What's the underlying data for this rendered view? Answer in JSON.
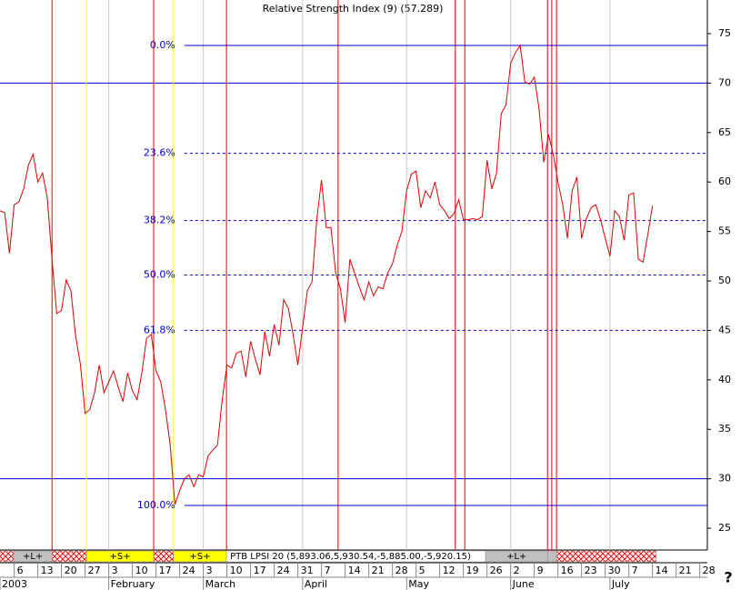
{
  "chart_data": {
    "type": "line",
    "title": "Relative Strength Index (9) (57.289)",
    "color": "#e00000",
    "values": [
      57.1,
      56.9,
      52.8,
      57.7,
      58.0,
      59.3,
      61.7,
      62.8,
      60.0,
      60.9,
      58.4,
      52.2,
      46.7,
      47.0,
      50.1,
      49.0,
      44.4,
      41.6,
      36.6,
      37.0,
      38.7,
      41.5,
      38.7,
      39.8,
      40.9,
      39.3,
      37.8,
      40.7,
      38.9,
      38.0,
      40.7,
      44.2,
      44.6,
      40.9,
      39.8,
      37.0,
      33.4,
      27.4,
      28.8,
      30.0,
      30.4,
      29.2,
      30.4,
      30.2,
      32.3,
      32.9,
      33.4,
      38.0,
      41.5,
      41.2,
      42.7,
      42.9,
      40.3,
      43.9,
      42.1,
      40.5,
      44.9,
      42.4,
      45.6,
      43.5,
      48.1,
      47.2,
      44.6,
      41.5,
      45.3,
      49.0,
      49.9,
      56.2,
      60.2,
      55.4,
      55.4,
      50.8,
      49.2,
      45.8,
      52.2,
      50.8,
      49.4,
      48.1,
      49.9,
      48.5,
      49.4,
      49.2,
      50.8,
      51.7,
      53.6,
      55.0,
      59.1,
      60.8,
      61.1,
      57.4,
      59.1,
      58.4,
      60.0,
      57.7,
      57.1,
      56.3,
      56.8,
      58.2,
      56.2,
      56.2,
      56.3,
      56.2,
      56.5,
      62.2,
      59.3,
      60.9,
      66.9,
      67.8,
      72.0,
      73.1,
      73.8,
      70.1,
      69.9,
      70.6,
      67.4,
      62.0,
      64.8,
      62.8,
      60.0,
      57.7,
      54.3,
      59.1,
      60.5,
      54.3,
      56.3,
      57.4,
      57.7,
      56.2,
      54.3,
      52.5,
      57.1,
      56.5,
      54.1,
      58.7,
      58.9,
      52.2,
      51.9,
      54.7,
      57.6
    ],
    "xlim": [
      0,
      149.6
    ],
    "ylim": [
      22.8,
      78.4
    ],
    "yticks": [
      25,
      30,
      35,
      40,
      45,
      50,
      55,
      60,
      65,
      70,
      75
    ],
    "xticks": [
      {
        "value": 3,
        "label": "6"
      },
      {
        "value": 8,
        "label": "13"
      },
      {
        "value": 13,
        "label": "20"
      },
      {
        "value": 18,
        "label": "27"
      },
      {
        "value": 23,
        "label": "3"
      },
      {
        "value": 28,
        "label": "10"
      },
      {
        "value": 33,
        "label": "17"
      },
      {
        "value": 38,
        "label": "24"
      },
      {
        "value": 43,
        "label": "3"
      },
      {
        "value": 48,
        "label": "10"
      },
      {
        "value": 53,
        "label": "17"
      },
      {
        "value": 58,
        "label": "24"
      },
      {
        "value": 63,
        "label": "31"
      },
      {
        "value": 68,
        "label": "7"
      },
      {
        "value": 73,
        "label": "14"
      },
      {
        "value": 78,
        "label": "21"
      },
      {
        "value": 83,
        "label": "28"
      },
      {
        "value": 88,
        "label": "5"
      },
      {
        "value": 93,
        "label": "12"
      },
      {
        "value": 98,
        "label": "19"
      },
      {
        "value": 103,
        "label": "26"
      },
      {
        "value": 108,
        "label": "2"
      },
      {
        "value": 113,
        "label": "9"
      },
      {
        "value": 118,
        "label": "16"
      },
      {
        "value": 123,
        "label": "23"
      },
      {
        "value": 128,
        "label": "30"
      },
      {
        "value": 133,
        "label": "7"
      },
      {
        "value": 138,
        "label": "14"
      },
      {
        "value": 143,
        "label": "21"
      },
      {
        "value": 148,
        "label": "28"
      }
    ],
    "month_labels": [
      {
        "value": 0,
        "label": "2003"
      },
      {
        "value": 23,
        "label": "February"
      },
      {
        "value": 43,
        "label": "March"
      },
      {
        "value": 64,
        "label": "April"
      },
      {
        "value": 86,
        "label": "May"
      },
      {
        "value": 108,
        "label": "June"
      },
      {
        "value": 129,
        "label": "July"
      }
    ],
    "fib_start": 39,
    "fib_levels": [
      {
        "value": 73.8,
        "label": "0.0%"
      },
      {
        "value": 62.9,
        "label": "23.6%"
      },
      {
        "value": 56.1,
        "label": "38.2%"
      },
      {
        "value": 50.6,
        "label": "50.0%"
      },
      {
        "value": 45.0,
        "label": "61.8%"
      },
      {
        "value": 27.3,
        "label": "100.0%"
      }
    ],
    "hlines": [
      70,
      30
    ],
    "signals": [
      {
        "value": 11,
        "color": "#e00000"
      },
      {
        "value": 18.3,
        "color": "#ffff00"
      },
      {
        "value": 32.5,
        "color": "#e00000"
      },
      {
        "value": 36.7,
        "color": "#ffff00"
      },
      {
        "value": 47.9,
        "color": "#e00000"
      },
      {
        "value": 71.5,
        "color": "#e00000"
      },
      {
        "value": 96.3,
        "color": "#e00000"
      },
      {
        "value": 98.3,
        "color": "#e00000"
      },
      {
        "value": 115.8,
        "color": "#e00000"
      },
      {
        "value": 116.7,
        "color": "#e00000"
      },
      {
        "value": 117.7,
        "color": "#e00000"
      }
    ],
    "strip": [
      {
        "from": 0,
        "to": 2.9,
        "style": "hatch"
      },
      {
        "from": 2.9,
        "to": 11,
        "style": "gray",
        "label": "+L+"
      },
      {
        "from": 11,
        "to": 18.3,
        "style": "hatch"
      },
      {
        "from": 18.3,
        "to": 32.5,
        "style": "yellow",
        "label": "+S+"
      },
      {
        "from": 32.5,
        "to": 36.7,
        "style": "hatch"
      },
      {
        "from": 36.7,
        "to": 47.9,
        "style": "yellow",
        "label": "+S+"
      },
      {
        "from": 47.9,
        "to": 102.7,
        "style": "white",
        "label": "PTB LPSI 20 (5,893.06,5,930.54,-5,885.00,-5,920.15)"
      },
      {
        "from": 102.7,
        "to": 115.8,
        "style": "gray",
        "label": "+L+"
      },
      {
        "from": 115.8,
        "to": 117.7,
        "style": "gray"
      },
      {
        "from": 117.7,
        "to": 138.8,
        "style": "hatch"
      }
    ],
    "help": "?"
  }
}
